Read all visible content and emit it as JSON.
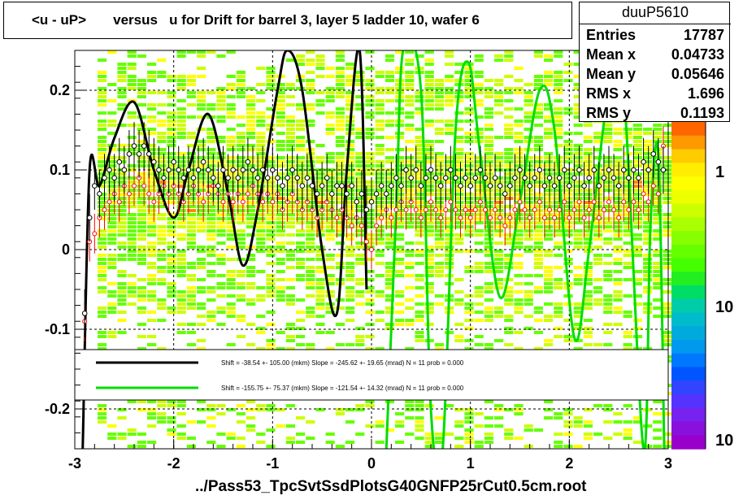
{
  "title": "<u - uP>       versus   u for Drift for barrel 3, layer 5 ladder 10, wafer 6",
  "stats": {
    "name": "duuP5610",
    "rows": [
      {
        "label": "Entries",
        "value": "17787"
      },
      {
        "label": "Mean x",
        "value": "0.04733"
      },
      {
        "label": "Mean y",
        "value": "0.05646"
      },
      {
        "label": "RMS x",
        "value": "1.696"
      },
      {
        "label": "RMS y",
        "value": "0.1193"
      }
    ]
  },
  "footer": "../Pass53_TpcSvtSsdPlotsG40GNFP25rCut0.5cm.root",
  "legend": [
    {
      "text": "Shift =   -38.54 +- 105.00 (mkm) Slope =  -245.62 +- 19.65 (mrad)  N = 11 prob = 0.000",
      "color": "#000000"
    },
    {
      "text": "Shift =  -155.75 +- 75.37 (mkm) Slope =  -121.54 +- 14.32 (mrad)  N = 11 prob = 0.000",
      "color": "#00dd00"
    }
  ],
  "colors": {
    "heat_low": "#66ff00",
    "heat_mid": "#ccff00",
    "heat_high": "#ff8800",
    "black_fit": "#000000",
    "green_fit": "#00dd00",
    "red_markers": "#ff0000"
  },
  "chart_data": {
    "type": "heatmap",
    "xlim": [
      -3,
      3
    ],
    "ylim": [
      -0.25,
      0.25
    ],
    "xticks": [
      -3,
      -2,
      -1,
      0,
      1,
      2,
      3
    ],
    "yticks": [
      -0.2,
      -0.1,
      0,
      0.1,
      0.2
    ],
    "ytick_labels": [
      "-0.2",
      "-0.1",
      "0",
      "0.1",
      "0.2"
    ],
    "colorbar_ticks": [
      "1",
      "10",
      "10"
    ],
    "grid": true,
    "black_fit": {
      "type": "line",
      "x_range": [
        -2.92,
        -0.05
      ],
      "points": [
        [
          -2.92,
          -0.25
        ],
        [
          -2.85,
          0.1
        ],
        [
          -2.75,
          0.08
        ],
        [
          -2.6,
          0.14
        ],
        [
          -2.4,
          0.185
        ],
        [
          -2.2,
          0.1
        ],
        [
          -2.0,
          0.04
        ],
        [
          -1.85,
          0.1
        ],
        [
          -1.65,
          0.17
        ],
        [
          -1.45,
          0.07
        ],
        [
          -1.3,
          -0.02
        ],
        [
          -1.15,
          0.05
        ],
        [
          -0.95,
          0.2
        ],
        [
          -0.85,
          0.25
        ],
        [
          -0.7,
          0.2
        ],
        [
          -0.5,
          0.0
        ],
        [
          -0.35,
          -0.08
        ],
        [
          -0.25,
          0.1
        ],
        [
          -0.12,
          0.25
        ],
        [
          -0.05,
          -0.05
        ]
      ]
    },
    "green_fit": {
      "type": "line",
      "x_range": [
        0.15,
        3.0
      ],
      "points": [
        [
          0.15,
          -0.25
        ],
        [
          0.25,
          0.05
        ],
        [
          0.32,
          0.25
        ],
        [
          0.5,
          0.2
        ],
        [
          0.6,
          -0.2
        ],
        [
          0.72,
          -0.25
        ],
        [
          0.85,
          0.15
        ],
        [
          0.98,
          0.235
        ],
        [
          1.1,
          0.12
        ],
        [
          1.3,
          -0.06
        ],
        [
          1.5,
          0.06
        ],
        [
          1.7,
          0.2
        ],
        [
          1.85,
          0.15
        ],
        [
          2.05,
          -0.11
        ],
        [
          2.2,
          0.0
        ],
        [
          2.4,
          0.2
        ],
        [
          2.55,
          0.2
        ],
        [
          2.75,
          -0.25
        ],
        [
          2.82,
          0.03
        ],
        [
          2.9,
          0.12
        ],
        [
          2.96,
          -0.25
        ]
      ]
    },
    "profile_black": [
      [
        -2.9,
        -0.08
      ],
      [
        -2.85,
        0.04
      ],
      [
        -2.8,
        0.08
      ],
      [
        -2.75,
        0.07
      ],
      [
        -2.7,
        0.09
      ],
      [
        -2.65,
        0.1
      ],
      [
        -2.6,
        0.09
      ],
      [
        -2.55,
        0.11
      ],
      [
        -2.5,
        0.1
      ],
      [
        -2.45,
        0.12
      ],
      [
        -2.4,
        0.13
      ],
      [
        -2.35,
        0.12
      ],
      [
        -2.3,
        0.13
      ],
      [
        -2.25,
        0.12
      ],
      [
        -2.2,
        0.11
      ],
      [
        -2.15,
        0.1
      ],
      [
        -2.1,
        0.09
      ],
      [
        -2.05,
        0.1
      ],
      [
        -2.0,
        0.11
      ],
      [
        -1.95,
        0.1
      ],
      [
        -1.9,
        0.09
      ],
      [
        -1.85,
        0.1
      ],
      [
        -1.8,
        0.09
      ],
      [
        -1.75,
        0.1
      ],
      [
        -1.7,
        0.11
      ],
      [
        -1.65,
        0.1
      ],
      [
        -1.6,
        0.09
      ],
      [
        -1.55,
        0.08
      ],
      [
        -1.5,
        0.1
      ],
      [
        -1.45,
        0.09
      ],
      [
        -1.4,
        0.1
      ],
      [
        -1.35,
        0.09
      ],
      [
        -1.3,
        0.1
      ],
      [
        -1.25,
        0.11
      ],
      [
        -1.2,
        0.1
      ],
      [
        -1.15,
        0.09
      ],
      [
        -1.1,
        0.1
      ],
      [
        -1.05,
        0.09
      ],
      [
        -1.0,
        0.1
      ],
      [
        -0.95,
        0.09
      ],
      [
        -0.9,
        0.08
      ],
      [
        -0.85,
        0.09
      ],
      [
        -0.8,
        0.1
      ],
      [
        -0.75,
        0.09
      ],
      [
        -0.7,
        0.08
      ],
      [
        -0.65,
        0.09
      ],
      [
        -0.6,
        0.08
      ],
      [
        -0.55,
        0.07
      ],
      [
        -0.5,
        0.08
      ],
      [
        -0.45,
        0.09
      ],
      [
        -0.4,
        0.07
      ],
      [
        -0.35,
        0.08
      ],
      [
        -0.3,
        0.08
      ],
      [
        -0.25,
        0.07
      ],
      [
        -0.2,
        0.08
      ],
      [
        -0.15,
        0.06
      ],
      [
        -0.1,
        0.07
      ],
      [
        -0.05,
        0.05
      ],
      [
        0.0,
        0.06
      ],
      [
        0.05,
        0.07
      ],
      [
        0.1,
        0.08
      ],
      [
        0.15,
        0.07
      ],
      [
        0.2,
        0.08
      ],
      [
        0.25,
        0.09
      ],
      [
        0.3,
        0.08
      ],
      [
        0.35,
        0.1
      ],
      [
        0.4,
        0.09
      ],
      [
        0.45,
        0.1
      ],
      [
        0.5,
        0.08
      ],
      [
        0.55,
        0.09
      ],
      [
        0.6,
        0.1
      ],
      [
        0.65,
        0.09
      ],
      [
        0.7,
        0.08
      ],
      [
        0.75,
        0.09
      ],
      [
        0.8,
        0.1
      ],
      [
        0.85,
        0.09
      ],
      [
        0.9,
        0.08
      ],
      [
        0.95,
        0.09
      ],
      [
        1.0,
        0.08
      ],
      [
        1.05,
        0.09
      ],
      [
        1.1,
        0.1
      ],
      [
        1.15,
        0.09
      ],
      [
        1.2,
        0.08
      ],
      [
        1.25,
        0.09
      ],
      [
        1.3,
        0.08
      ],
      [
        1.35,
        0.07
      ],
      [
        1.4,
        0.08
      ],
      [
        1.45,
        0.09
      ],
      [
        1.5,
        0.1
      ],
      [
        1.55,
        0.09
      ],
      [
        1.6,
        0.08
      ],
      [
        1.65,
        0.09
      ],
      [
        1.7,
        0.1
      ],
      [
        1.75,
        0.08
      ],
      [
        1.8,
        0.09
      ],
      [
        1.85,
        0.08
      ],
      [
        1.9,
        0.09
      ],
      [
        1.95,
        0.1
      ],
      [
        2.0,
        0.08
      ],
      [
        2.05,
        0.09
      ],
      [
        2.1,
        0.1
      ],
      [
        2.15,
        0.08
      ],
      [
        2.2,
        0.09
      ],
      [
        2.25,
        0.1
      ],
      [
        2.3,
        0.08
      ],
      [
        2.35,
        0.09
      ],
      [
        2.4,
        0.1
      ],
      [
        2.45,
        0.09
      ],
      [
        2.5,
        0.08
      ],
      [
        2.55,
        0.1
      ],
      [
        2.6,
        0.09
      ],
      [
        2.65,
        0.1
      ],
      [
        2.7,
        0.09
      ],
      [
        2.75,
        0.11
      ],
      [
        2.8,
        0.1
      ],
      [
        2.85,
        0.12
      ],
      [
        2.9,
        0.11
      ],
      [
        2.95,
        0.1
      ]
    ],
    "profile_red": [
      [
        -2.9,
        -0.09
      ],
      [
        -2.85,
        0.01
      ],
      [
        -2.8,
        0.02
      ],
      [
        -2.75,
        0.04
      ],
      [
        -2.7,
        0.05
      ],
      [
        -2.65,
        0.06
      ],
      [
        -2.6,
        0.07
      ],
      [
        -2.55,
        0.06
      ],
      [
        -2.5,
        0.08
      ],
      [
        -2.45,
        0.07
      ],
      [
        -2.4,
        0.08
      ],
      [
        -2.35,
        0.09
      ],
      [
        -2.3,
        0.08
      ],
      [
        -2.25,
        0.07
      ],
      [
        -2.2,
        0.06
      ],
      [
        -2.15,
        0.07
      ],
      [
        -2.1,
        0.08
      ],
      [
        -2.05,
        0.07
      ],
      [
        -2.0,
        0.08
      ],
      [
        -1.95,
        0.07
      ],
      [
        -1.9,
        0.06
      ],
      [
        -1.85,
        0.07
      ],
      [
        -1.8,
        0.08
      ],
      [
        -1.75,
        0.07
      ],
      [
        -1.7,
        0.06
      ],
      [
        -1.65,
        0.07
      ],
      [
        -1.6,
        0.08
      ],
      [
        -1.55,
        0.07
      ],
      [
        -1.5,
        0.06
      ],
      [
        -1.45,
        0.07
      ],
      [
        -1.4,
        0.06
      ],
      [
        -1.35,
        0.07
      ],
      [
        -1.3,
        0.06
      ],
      [
        -1.25,
        0.07
      ],
      [
        -1.2,
        0.08
      ],
      [
        -1.15,
        0.07
      ],
      [
        -1.1,
        0.06
      ],
      [
        -1.05,
        0.07
      ],
      [
        -1.0,
        0.06
      ],
      [
        -0.95,
        0.07
      ],
      [
        -0.9,
        0.05
      ],
      [
        -0.85,
        0.06
      ],
      [
        -0.8,
        0.07
      ],
      [
        -0.75,
        0.06
      ],
      [
        -0.7,
        0.05
      ],
      [
        -0.65,
        0.06
      ],
      [
        -0.6,
        0.05
      ],
      [
        -0.55,
        0.04
      ],
      [
        -0.5,
        0.05
      ],
      [
        -0.45,
        0.06
      ],
      [
        -0.4,
        0.05
      ],
      [
        -0.35,
        0.04
      ],
      [
        -0.3,
        0.05
      ],
      [
        -0.25,
        0.04
      ],
      [
        -0.2,
        0.03
      ],
      [
        -0.15,
        0.04
      ],
      [
        -0.1,
        0.03
      ],
      [
        -0.05,
        0.01
      ],
      [
        0.0,
        0.0
      ],
      [
        0.05,
        0.03
      ],
      [
        0.1,
        0.04
      ],
      [
        0.15,
        0.05
      ],
      [
        0.2,
        0.04
      ],
      [
        0.25,
        0.05
      ],
      [
        0.3,
        0.06
      ],
      [
        0.35,
        0.05
      ],
      [
        0.4,
        0.06
      ],
      [
        0.45,
        0.05
      ],
      [
        0.5,
        0.04
      ],
      [
        0.55,
        0.05
      ],
      [
        0.6,
        0.06
      ],
      [
        0.65,
        0.05
      ],
      [
        0.7,
        0.04
      ],
      [
        0.75,
        0.05
      ],
      [
        0.8,
        0.06
      ],
      [
        0.85,
        0.05
      ],
      [
        0.9,
        0.04
      ],
      [
        0.95,
        0.05
      ],
      [
        1.0,
        0.04
      ],
      [
        1.05,
        0.05
      ],
      [
        1.1,
        0.06
      ],
      [
        1.15,
        0.05
      ],
      [
        1.2,
        0.04
      ],
      [
        1.25,
        0.05
      ],
      [
        1.3,
        0.04
      ],
      [
        1.35,
        0.03
      ],
      [
        1.4,
        0.04
      ],
      [
        1.45,
        0.05
      ],
      [
        1.5,
        0.06
      ],
      [
        1.55,
        0.05
      ],
      [
        1.6,
        0.04
      ],
      [
        1.65,
        0.05
      ],
      [
        1.7,
        0.06
      ],
      [
        1.75,
        0.04
      ],
      [
        1.8,
        0.05
      ],
      [
        1.85,
        0.04
      ],
      [
        1.9,
        0.05
      ],
      [
        1.95,
        0.06
      ],
      [
        2.0,
        0.04
      ],
      [
        2.05,
        0.05
      ],
      [
        2.1,
        0.06
      ],
      [
        2.15,
        0.04
      ],
      [
        2.2,
        0.05
      ],
      [
        2.25,
        0.06
      ],
      [
        2.3,
        0.04
      ],
      [
        2.35,
        0.05
      ],
      [
        2.4,
        0.06
      ],
      [
        2.45,
        0.05
      ],
      [
        2.5,
        0.04
      ],
      [
        2.55,
        0.06
      ],
      [
        2.6,
        0.05
      ],
      [
        2.65,
        0.06
      ],
      [
        2.7,
        0.05
      ],
      [
        2.75,
        0.07
      ],
      [
        2.8,
        0.06
      ],
      [
        2.85,
        0.08
      ],
      [
        2.9,
        0.07
      ],
      [
        2.95,
        0.13
      ]
    ]
  }
}
